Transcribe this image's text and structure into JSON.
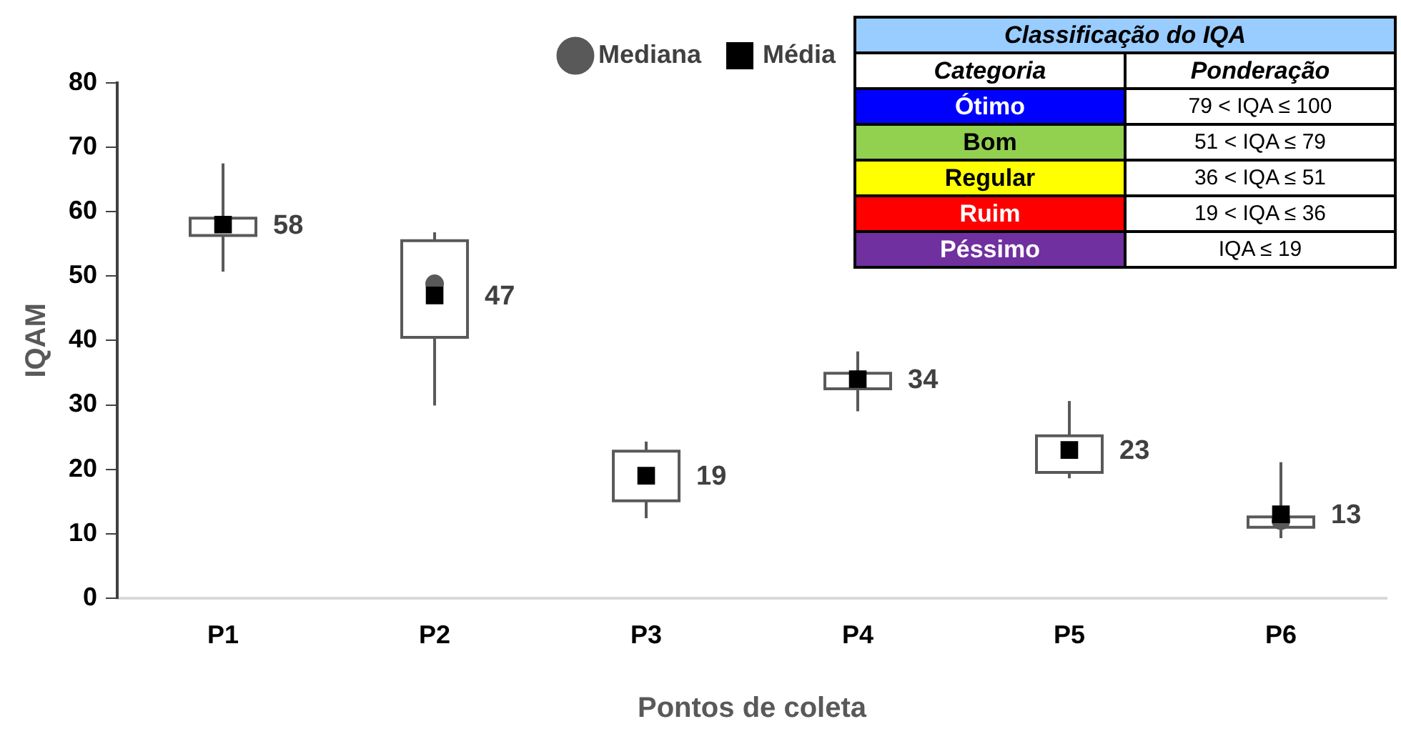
{
  "chart_data": {
    "type": "box",
    "xlabel": "Pontos de coleta",
    "ylabel": "IQAM",
    "categories": [
      "P1",
      "P2",
      "P3",
      "P4",
      "P5",
      "P6"
    ],
    "ylim": [
      0,
      80
    ],
    "yticks": [
      0,
      10,
      20,
      30,
      40,
      50,
      60,
      70,
      80
    ],
    "grid": false,
    "legend": "top",
    "data_labels": true,
    "series": [
      {
        "name": "Mediana",
        "type": "box",
        "color": "#595959",
        "boxes": [
          {
            "low": 50.7,
            "q1": 56.3,
            "median": null,
            "q3": 59,
            "high": 67.5
          },
          {
            "low": 29.9,
            "q1": 40.5,
            "median": 48.8,
            "q3": 55.5,
            "high": 56.8
          },
          {
            "low": 12.4,
            "q1": 15.1,
            "median": null,
            "q3": 22.8,
            "high": 24.3
          },
          {
            "low": 29,
            "q1": 32.5,
            "median": null,
            "q3": 34.9,
            "high": 38.3
          },
          {
            "low": 18.6,
            "q1": 19.5,
            "median": null,
            "q3": 25.2,
            "high": 30.6
          },
          {
            "low": 9.3,
            "q1": 11,
            "median": 12,
            "q3": 12.6,
            "high": 21.1
          }
        ]
      },
      {
        "name": "Média",
        "type": "scatter",
        "color": "#000000",
        "marker": "square",
        "x": [
          "P1",
          "P2",
          "P3",
          "P4",
          "P5",
          "P6"
        ],
        "values": [
          58,
          47,
          19,
          34,
          23,
          13
        ]
      }
    ],
    "annotations": [
      "Classificação do IQA",
      "Categoria",
      "Ponderação",
      "Ótimo",
      "79 < IQA ≤ 100",
      "Bom",
      "51 < IQA ≤ 79",
      "Regular",
      "36 < IQA ≤ 51",
      "Ruim",
      "19 < IQA ≤ 36",
      "Péssimo",
      "IQA ≤ 19"
    ]
  }
}
